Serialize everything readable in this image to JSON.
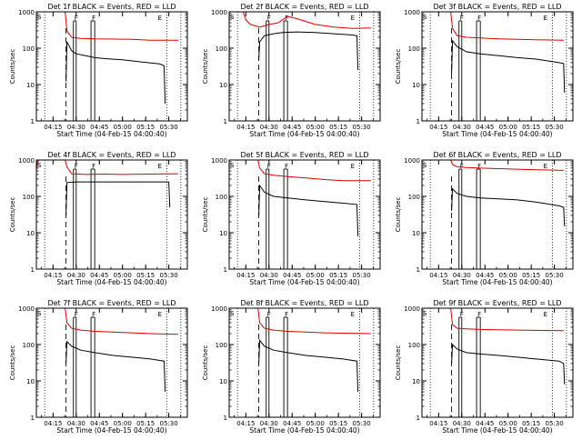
{
  "figure": {
    "x_axis_label": "Start Time (04-Feb-15 04:00:40)",
    "y_axis_label": "Counts/sec",
    "series_colors": {
      "events": "#000000",
      "lld": "#dd0000"
    },
    "marker_letters": {
      "s": "S",
      "f": "F",
      "e": "E"
    }
  },
  "chart_data": [
    {
      "type": "line",
      "title": "Det 1f BLACK = Events, RED = LLD",
      "xlim": [
        4.07,
        5.7
      ],
      "ylim": [
        1,
        1000
      ],
      "yscale": "log",
      "xticks": [
        "04:15",
        "04:30",
        "04:45",
        "05:00",
        "05:15",
        "05:30"
      ],
      "yticks": [
        "1",
        "10",
        "100",
        "1000"
      ],
      "markers": {
        "dashed_line": 4.39,
        "bar_f1": [
          4.47,
          4.5
        ],
        "bar_f2": [
          4.66,
          4.7
        ],
        "dotted": [
          4.16,
          5.48,
          5.63
        ]
      },
      "series": [
        {
          "name": "Events",
          "color": "#000000",
          "x": [
            4.39,
            4.4,
            4.45,
            4.5,
            4.6,
            4.7,
            4.8,
            5.0,
            5.2,
            5.4,
            5.45,
            5.46
          ],
          "y": [
            12,
            150,
            85,
            70,
            62,
            55,
            52,
            48,
            42,
            37,
            33,
            3
          ]
        },
        {
          "name": "LLD",
          "color": "#dd0000",
          "x": [
            4.07,
            4.38,
            4.4,
            4.45,
            4.55,
            4.7,
            4.9,
            5.1,
            5.3,
            5.6
          ],
          "y": [
            1000,
            1000,
            300,
            200,
            185,
            180,
            178,
            175,
            165,
            165
          ]
        }
      ]
    },
    {
      "type": "line",
      "title": "Det 2f BLACK = Events, RED = LLD",
      "xlim": [
        4.07,
        5.7
      ],
      "ylim": [
        1,
        1000
      ],
      "yscale": "log",
      "xticks": [
        "04:15",
        "04:30",
        "04:45",
        "05:00",
        "05:15",
        "05:30"
      ],
      "yticks": [
        "1",
        "10",
        "100",
        "1000"
      ],
      "markers": {
        "dashed_line": 4.39,
        "bar_f1": [
          4.47,
          4.5
        ],
        "bar_f2": [
          4.66,
          4.7
        ],
        "dotted": [
          4.16,
          5.48,
          5.63
        ]
      },
      "series": [
        {
          "name": "Events",
          "color": "#000000",
          "x": [
            4.39,
            4.4,
            4.45,
            4.55,
            4.65,
            4.8,
            5.0,
            5.2,
            5.4,
            5.45,
            5.46
          ],
          "y": [
            50,
            150,
            220,
            250,
            270,
            280,
            270,
            250,
            230,
            220,
            25
          ]
        },
        {
          "name": "LLD",
          "color": "#dd0000",
          "x": [
            4.07,
            4.22,
            4.25,
            4.3,
            4.4,
            4.5,
            4.6,
            4.7,
            4.8,
            5.0,
            5.2,
            5.4,
            5.6
          ],
          "y": [
            1000,
            1000,
            600,
            450,
            380,
            450,
            500,
            750,
            650,
            450,
            380,
            350,
            360
          ]
        }
      ]
    },
    {
      "type": "line",
      "title": "Det 3f BLACK = Events, RED = LLD",
      "xlim": [
        4.07,
        5.7
      ],
      "ylim": [
        1,
        1000
      ],
      "yscale": "log",
      "xticks": [
        "04:15",
        "04:30",
        "04:45",
        "05:00",
        "05:15",
        "05:30"
      ],
      "yticks": [
        "1",
        "10",
        "100",
        "1000"
      ],
      "markers": {
        "dashed_line": 4.39,
        "bar_f1": [
          4.47,
          4.5
        ],
        "bar_f2": [
          4.66,
          4.7
        ],
        "dotted": [
          4.16,
          5.48,
          5.63
        ]
      },
      "series": [
        {
          "name": "Events",
          "color": "#000000",
          "x": [
            4.39,
            4.4,
            4.45,
            4.55,
            4.7,
            4.9,
            5.1,
            5.3,
            5.55,
            5.6,
            5.61
          ],
          "y": [
            20,
            160,
            110,
            80,
            70,
            62,
            55,
            50,
            40,
            38,
            6
          ]
        },
        {
          "name": "LLD",
          "color": "#dd0000",
          "x": [
            4.07,
            4.38,
            4.4,
            4.45,
            4.55,
            4.7,
            4.9,
            5.1,
            5.3,
            5.6
          ],
          "y": [
            1000,
            1000,
            350,
            220,
            200,
            190,
            180,
            175,
            170,
            165
          ]
        }
      ]
    },
    {
      "type": "line",
      "title": "Det 4f BLACK = Events, RED = LLD",
      "xlim": [
        4.07,
        5.7
      ],
      "ylim": [
        1,
        1000
      ],
      "yscale": "log",
      "xticks": [
        "04:15",
        "04:30",
        "04:45",
        "05:00",
        "05:15",
        "05:30"
      ],
      "yticks": [
        "1",
        "10",
        "100",
        "1000"
      ],
      "markers": {
        "dashed_line": 4.39,
        "bar_f1": [
          4.47,
          4.5
        ],
        "bar_f2": [
          4.66,
          4.7
        ],
        "dotted": [
          4.16,
          5.48,
          5.63
        ]
      },
      "series": [
        {
          "name": "Events",
          "color": "#000000",
          "x": [
            4.39,
            4.4,
            4.5,
            4.7,
            5.0,
            5.3,
            5.5,
            5.51
          ],
          "y": [
            30,
            240,
            250,
            250,
            250,
            250,
            250,
            50
          ]
        },
        {
          "name": "LLD",
          "color": "#dd0000",
          "x": [
            4.07,
            4.08,
            4.1,
            4.38,
            4.4,
            4.45,
            4.6,
            4.8,
            5.0,
            5.3,
            5.6
          ],
          "y": [
            500,
            900,
            1000,
            1000,
            650,
            420,
            400,
            410,
            400,
            410,
            420
          ]
        }
      ]
    },
    {
      "type": "line",
      "title": "Det 5f BLACK = Events, RED = LLD",
      "xlim": [
        4.07,
        5.7
      ],
      "ylim": [
        1,
        1000
      ],
      "yscale": "log",
      "xticks": [
        "04:15",
        "04:30",
        "04:45",
        "05:00",
        "05:15",
        "05:30"
      ],
      "yticks": [
        "1",
        "10",
        "100",
        "1000"
      ],
      "markers": {
        "dashed_line": 4.39,
        "bar_f1": [
          4.47,
          4.5
        ],
        "bar_f2": [
          4.66,
          4.7
        ],
        "dotted": [
          4.16,
          5.48,
          5.63
        ]
      },
      "series": [
        {
          "name": "Events",
          "color": "#000000",
          "x": [
            4.39,
            4.4,
            4.45,
            4.55,
            4.7,
            4.9,
            5.1,
            5.3,
            5.45,
            5.46
          ],
          "y": [
            30,
            200,
            130,
            100,
            90,
            80,
            72,
            65,
            60,
            8
          ]
        },
        {
          "name": "LLD",
          "color": "#dd0000",
          "x": [
            4.07,
            4.38,
            4.4,
            4.45,
            4.55,
            4.7,
            4.9,
            5.1,
            5.3,
            5.6
          ],
          "y": [
            1000,
            1000,
            600,
            420,
            380,
            350,
            320,
            290,
            270,
            270
          ]
        }
      ]
    },
    {
      "type": "line",
      "title": "Det 6f BLACK = Events, RED = LLD",
      "xlim": [
        4.07,
        5.7
      ],
      "ylim": [
        1,
        1000
      ],
      "yscale": "log",
      "xticks": [
        "04:15",
        "04:30",
        "04:45",
        "05:00",
        "05:15",
        "05:30"
      ],
      "yticks": [
        "1",
        "10",
        "100",
        "1000"
      ],
      "markers": {
        "dashed_line": 4.39,
        "bar_f1": [
          4.47,
          4.5
        ],
        "bar_f2": [
          4.66,
          4.7
        ],
        "dotted": [
          4.16,
          5.48,
          5.63
        ]
      },
      "series": [
        {
          "name": "Events",
          "color": "#000000",
          "x": [
            4.39,
            4.4,
            4.45,
            4.55,
            4.7,
            4.9,
            5.1,
            5.3,
            5.55,
            5.6,
            5.61
          ],
          "y": [
            40,
            160,
            120,
            100,
            90,
            85,
            80,
            70,
            55,
            50,
            15
          ]
        },
        {
          "name": "LLD",
          "color": "#dd0000",
          "x": [
            4.07,
            4.38,
            4.4,
            4.45,
            4.55,
            4.7,
            4.9,
            5.1,
            5.3,
            5.6
          ],
          "y": [
            1000,
            1000,
            750,
            650,
            620,
            600,
            580,
            560,
            540,
            520
          ]
        }
      ]
    },
    {
      "type": "line",
      "title": "Det 7f BLACK = Events, RED = LLD",
      "xlim": [
        4.07,
        5.7
      ],
      "ylim": [
        1,
        1000
      ],
      "yscale": "log",
      "xticks": [
        "04:15",
        "04:30",
        "04:45",
        "05:00",
        "05:15",
        "05:30"
      ],
      "yticks": [
        "1",
        "10",
        "100",
        "1000"
      ],
      "markers": {
        "dashed_line": 4.39,
        "bar_f1": [
          4.47,
          4.5
        ],
        "bar_f2": [
          4.66,
          4.7
        ],
        "dotted": [
          4.16,
          5.48,
          5.63
        ]
      },
      "series": [
        {
          "name": "Events",
          "color": "#000000",
          "x": [
            4.39,
            4.4,
            4.45,
            4.55,
            4.7,
            4.9,
            5.1,
            5.3,
            5.45,
            5.46
          ],
          "y": [
            30,
            120,
            90,
            70,
            60,
            50,
            45,
            40,
            35,
            5
          ]
        },
        {
          "name": "LLD",
          "color": "#dd0000",
          "x": [
            4.07,
            4.38,
            4.4,
            4.45,
            4.55,
            4.7,
            4.9,
            5.1,
            5.3,
            5.6
          ],
          "y": [
            1000,
            1000,
            400,
            280,
            250,
            230,
            220,
            210,
            200,
            190
          ]
        }
      ]
    },
    {
      "type": "line",
      "title": "Det 8f BLACK = Events, RED = LLD",
      "xlim": [
        4.07,
        5.7
      ],
      "ylim": [
        1,
        1000
      ],
      "yscale": "log",
      "xticks": [
        "04:15",
        "04:30",
        "04:45",
        "05:00",
        "05:15",
        "05:30"
      ],
      "yticks": [
        "1",
        "10",
        "100",
        "1000"
      ],
      "markers": {
        "dashed_line": 4.39,
        "bar_f1": [
          4.47,
          4.5
        ],
        "bar_f2": [
          4.66,
          4.7
        ],
        "dotted": [
          4.16,
          5.48,
          5.63
        ]
      },
      "series": [
        {
          "name": "Events",
          "color": "#000000",
          "x": [
            4.39,
            4.4,
            4.45,
            4.55,
            4.7,
            4.9,
            5.1,
            5.3,
            5.45,
            5.46
          ],
          "y": [
            30,
            130,
            90,
            70,
            60,
            50,
            45,
            40,
            35,
            5
          ]
        },
        {
          "name": "LLD",
          "color": "#dd0000",
          "x": [
            4.07,
            4.38,
            4.4,
            4.45,
            4.55,
            4.7,
            4.9,
            5.1,
            5.3,
            5.6
          ],
          "y": [
            1000,
            1000,
            400,
            280,
            250,
            230,
            220,
            210,
            205,
            200
          ]
        }
      ]
    },
    {
      "type": "line",
      "title": "Det 9f BLACK = Events, RED = LLD",
      "xlim": [
        4.07,
        5.7
      ],
      "ylim": [
        1,
        1000
      ],
      "yscale": "log",
      "xticks": [
        "04:15",
        "04:30",
        "04:45",
        "05:00",
        "05:15",
        "05:30"
      ],
      "yticks": [
        "1",
        "10",
        "100",
        "1000"
      ],
      "markers": {
        "dashed_line": 4.39,
        "bar_f1": [
          4.47,
          4.5
        ],
        "bar_f2": [
          4.66,
          4.7
        ],
        "dotted": [
          4.16,
          5.48,
          5.63
        ]
      },
      "series": [
        {
          "name": "Events",
          "color": "#000000",
          "x": [
            4.39,
            4.4,
            4.45,
            4.55,
            4.7,
            4.9,
            5.1,
            5.3,
            5.55,
            5.6,
            5.61
          ],
          "y": [
            30,
            100,
            75,
            60,
            55,
            50,
            45,
            40,
            35,
            30,
            8
          ]
        },
        {
          "name": "LLD",
          "color": "#dd0000",
          "x": [
            4.07,
            4.38,
            4.4,
            4.45,
            4.55,
            4.7,
            4.9,
            5.1,
            5.3,
            5.6
          ],
          "y": [
            1000,
            1000,
            350,
            280,
            270,
            260,
            255,
            250,
            245,
            240
          ]
        }
      ]
    }
  ]
}
